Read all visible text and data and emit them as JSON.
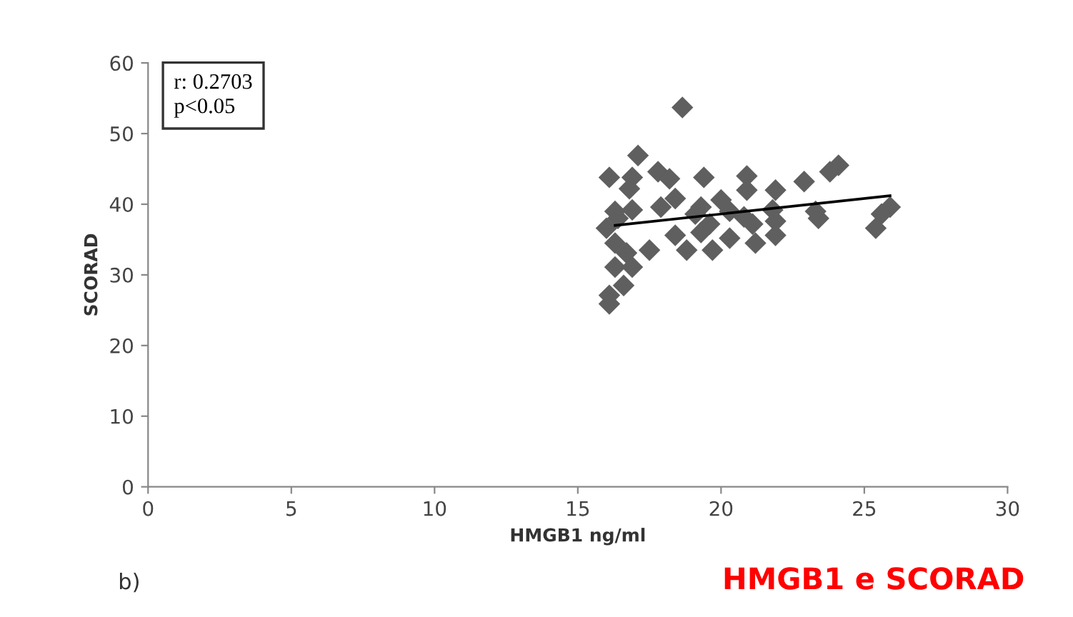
{
  "chart_data": {
    "type": "scatter",
    "xlabel": "HMGB1 ng/ml",
    "ylabel": "SCORAD",
    "xlim": [
      0,
      30
    ],
    "xticks": [
      0,
      5,
      10,
      15,
      20,
      25,
      30
    ],
    "ylim": [
      0,
      60
    ],
    "yticks": [
      0,
      10,
      20,
      30,
      40,
      50,
      60
    ],
    "grid": false,
    "annotations": [
      "r: 0.2703\np<0.05",
      "b)",
      "HMGB1 e SCORAD"
    ],
    "series": [
      {
        "marker": "diamond",
        "color": "#5f5f5f",
        "x": [
          18.65,
          17.1,
          16.1,
          16.9,
          17.8,
          18.2,
          19.4,
          20.9,
          20.9,
          21.9,
          16.8,
          18.4,
          17.9,
          16.3,
          16.9,
          19.3,
          20.0,
          20.3,
          20.8,
          21.8,
          16.0,
          19.6,
          21.1,
          21.9,
          16.3,
          18.4,
          19.3,
          20.3,
          21.9,
          16.7,
          17.5,
          18.8,
          19.7,
          21.2,
          16.3,
          16.9,
          16.6,
          16.1,
          16.1,
          19.1,
          16.4,
          24.1,
          23.8,
          22.9,
          23.4,
          23.3,
          25.9,
          25.6,
          25.4
        ],
        "values": [
          53.7,
          46.9,
          43.8,
          43.8,
          44.6,
          43.6,
          43.8,
          44,
          42,
          42,
          42.2,
          40.8,
          39.6,
          39,
          39.2,
          39.6,
          40.6,
          39,
          38.2,
          39.2,
          36.6,
          37.2,
          37.2,
          37.6,
          34.5,
          35.6,
          36,
          35.2,
          35.6,
          33.1,
          33.5,
          33.5,
          33.5,
          34.5,
          31.1,
          31.1,
          28.5,
          27.1,
          25.9,
          38.6,
          38,
          45.5,
          44.6,
          43.2,
          38,
          39,
          39.6,
          38.6,
          36.6
        ]
      },
      {
        "type": "line",
        "color": "#000000",
        "x": [
          16.3,
          25.9
        ],
        "values": [
          37.0,
          41.2
        ]
      }
    ]
  }
}
